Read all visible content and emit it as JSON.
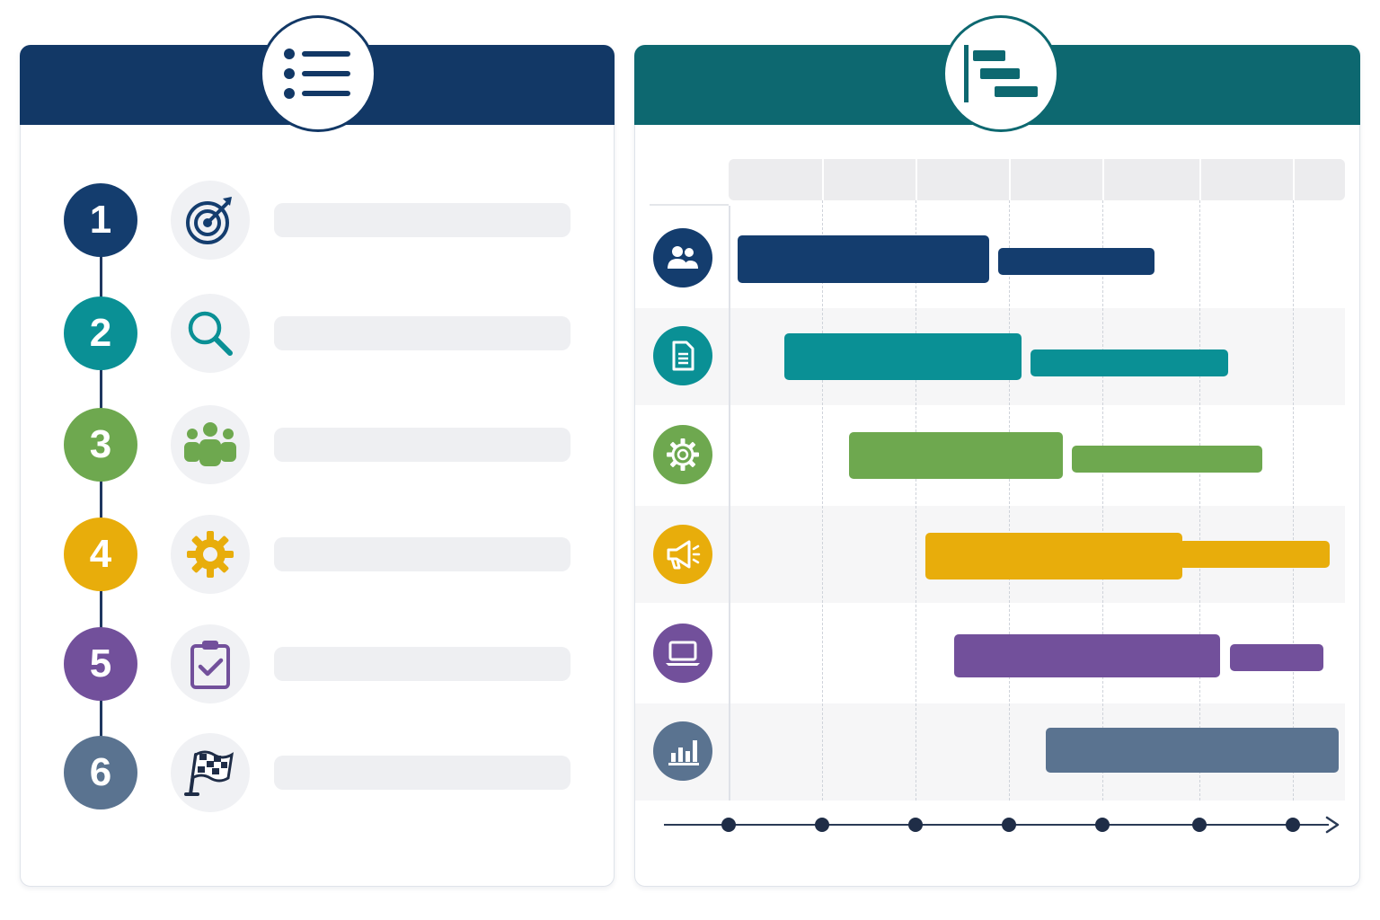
{
  "colors": {
    "navy": "#143d6e",
    "teal": "#0a9095",
    "green": "#6ea84f",
    "yellow": "#e8ad0b",
    "purple": "#72509b",
    "slate": "#5a7390",
    "left_header": "#123866",
    "right_header": "#0d6870"
  },
  "left_panel": {
    "header_icon": "list-icon",
    "steps": [
      {
        "number": "1",
        "icon": "target-icon",
        "color": "#143d6e"
      },
      {
        "number": "2",
        "icon": "magnifier-icon",
        "color": "#0a9095"
      },
      {
        "number": "3",
        "icon": "team-icon",
        "color": "#6ea84f"
      },
      {
        "number": "4",
        "icon": "gear-icon",
        "color": "#e8ad0b"
      },
      {
        "number": "5",
        "icon": "clipboard-check-icon",
        "color": "#72509b"
      },
      {
        "number": "6",
        "icon": "checkered-flag-icon",
        "color": "#5a7390"
      }
    ]
  },
  "right_panel": {
    "header_icon": "gantt-icon",
    "rows": [
      {
        "icon": "people-icon",
        "color": "#143d6e"
      },
      {
        "icon": "document-icon",
        "color": "#0a9095"
      },
      {
        "icon": "gear-icon",
        "color": "#6ea84f"
      },
      {
        "icon": "megaphone-icon",
        "color": "#e8ad0b"
      },
      {
        "icon": "laptop-icon",
        "color": "#72509b"
      },
      {
        "icon": "bar-chart-icon",
        "color": "#5a7390"
      }
    ]
  }
}
